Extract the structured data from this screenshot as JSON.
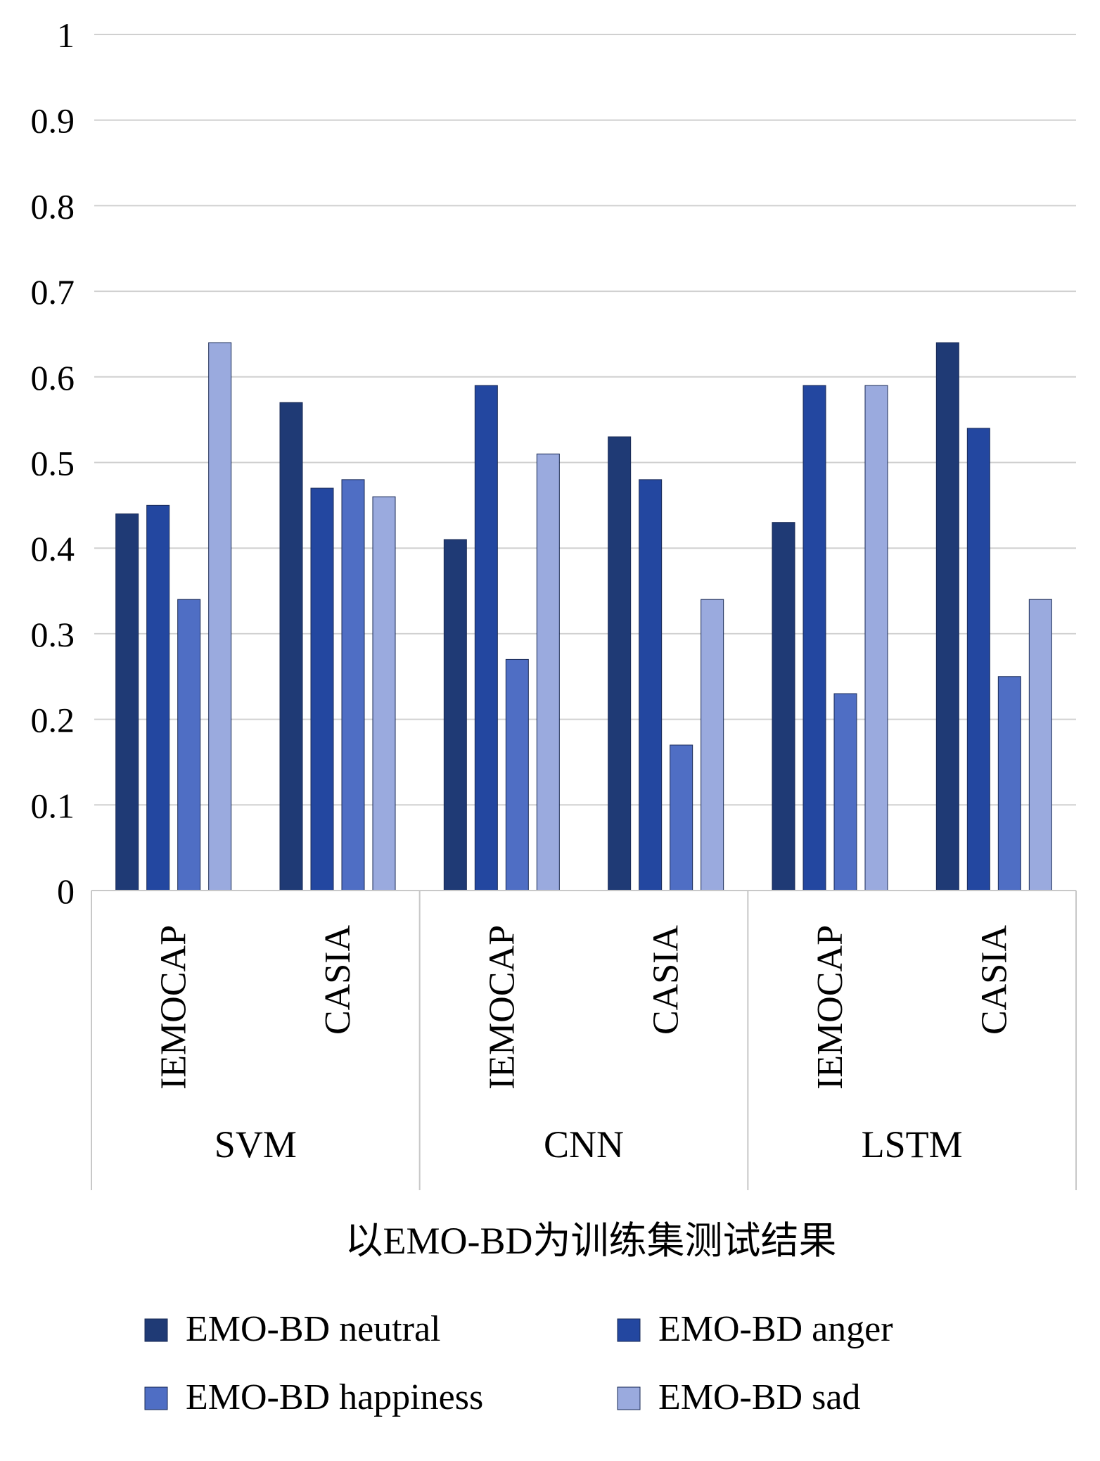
{
  "chart_data": {
    "type": "bar",
    "title": "",
    "xlabel": "以EMO-BD为训练集测试结果",
    "ylabel": "",
    "ylim": [
      0,
      1
    ],
    "yticks": [
      "0",
      "0.1",
      "0.2",
      "0.3",
      "0.4",
      "0.5",
      "0.6",
      "0.7",
      "0.8",
      "0.9",
      "1"
    ],
    "grid": true,
    "legend_position": "bottom",
    "groups": [
      {
        "label": "SVM",
        "categories": [
          "IEMOCAP",
          "CASIA"
        ]
      },
      {
        "label": "CNN",
        "categories": [
          "IEMOCAP",
          "CASIA"
        ]
      },
      {
        "label": "LSTM",
        "categories": [
          "IEMOCAP",
          "CASIA"
        ]
      }
    ],
    "series": [
      {
        "name": "EMO-BD neutral",
        "color": "#1f3a75",
        "values": [
          0.44,
          0.57,
          0.41,
          0.53,
          0.43,
          0.64
        ]
      },
      {
        "name": "EMO-BD anger",
        "color": "#2347a0",
        "values": [
          0.45,
          0.47,
          0.59,
          0.48,
          0.59,
          0.54
        ]
      },
      {
        "name": "EMO-BD happiness",
        "color": "#4f6ec4",
        "values": [
          0.34,
          0.48,
          0.27,
          0.17,
          0.23,
          0.25
        ]
      },
      {
        "name": "EMO-BD sad",
        "color": "#9aaade",
        "values": [
          0.64,
          0.46,
          0.51,
          0.34,
          0.59,
          0.34
        ]
      }
    ]
  }
}
